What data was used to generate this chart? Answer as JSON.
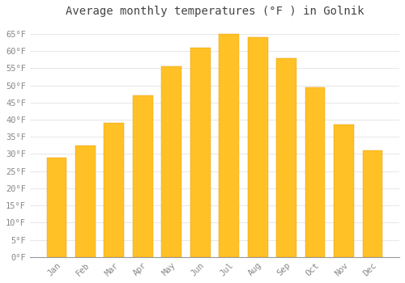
{
  "title": "Average monthly temperatures (°F ) in Golnik",
  "months": [
    "Jan",
    "Feb",
    "Mar",
    "Apr",
    "May",
    "Jun",
    "Jul",
    "Aug",
    "Sep",
    "Oct",
    "Nov",
    "Dec"
  ],
  "temperatures": [
    29,
    32.5,
    39,
    47,
    55.5,
    61,
    65,
    64,
    58,
    49.5,
    38.5,
    31
  ],
  "bar_color_top": "#FFC125",
  "bar_color_bottom": "#F5A800",
  "bar_edge_color": "#E8980A",
  "background_color": "#FFFFFF",
  "grid_color": "#DDDDDD",
  "text_color": "#888888",
  "title_color": "#444444",
  "ylim": [
    0,
    68
  ],
  "yticks": [
    0,
    5,
    10,
    15,
    20,
    25,
    30,
    35,
    40,
    45,
    50,
    55,
    60,
    65
  ],
  "ylabel_suffix": "°F",
  "title_fontsize": 10,
  "tick_fontsize": 7.5
}
